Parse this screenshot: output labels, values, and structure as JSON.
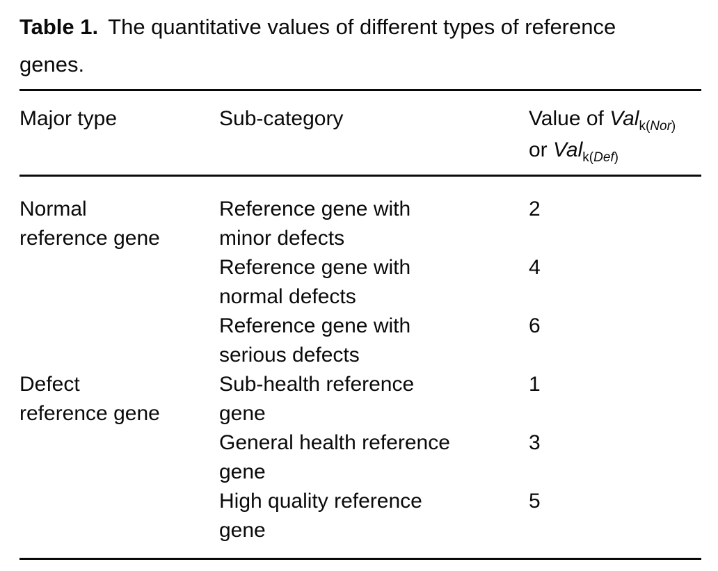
{
  "caption": {
    "label": "Table 1.",
    "line1_rest": "The quantitative values of different types of reference",
    "line2": "genes."
  },
  "columns": {
    "major": "Major type",
    "sub": "Sub-category"
  },
  "value_header": {
    "line1_prefix": "Value of ",
    "var": "Val",
    "sub_pre": "k(",
    "sub1_it": "Nor",
    "sub_close": ")",
    "line2_prefix": "or ",
    "sub2_it": "Def"
  },
  "rows": [
    {
      "major": [
        "Normal",
        "reference gene"
      ],
      "sub": [
        "Reference gene with",
        "minor defects"
      ],
      "value": "2"
    },
    {
      "sub": [
        "Reference gene with",
        "normal defects"
      ],
      "value": "4"
    },
    {
      "sub": [
        "Reference gene with",
        "serious defects"
      ],
      "value": "6"
    },
    {
      "major": [
        "Defect",
        "reference gene"
      ],
      "sub": [
        "Sub-health reference",
        "gene"
      ],
      "value": "1"
    },
    {
      "sub": [
        "General health reference",
        "gene"
      ],
      "value": "3"
    },
    {
      "sub": [
        "High quality reference",
        "gene"
      ],
      "value": "5"
    }
  ]
}
